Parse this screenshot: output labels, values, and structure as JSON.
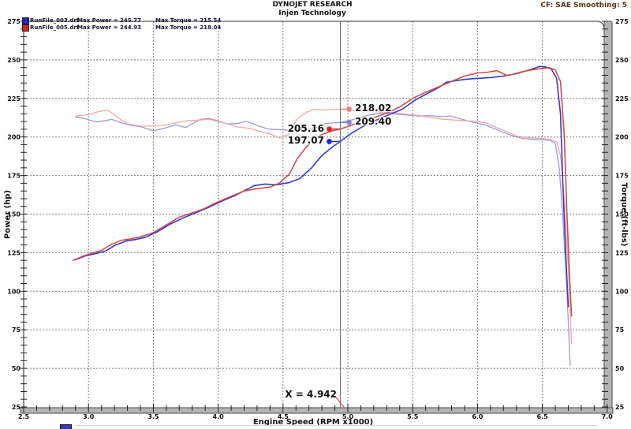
{
  "header": {
    "brand": "DYNOJET RESEARCH",
    "facility": "Injen Technology",
    "correction": "CF: SAE  Smoothing: 5"
  },
  "legend": {
    "rows": [
      {
        "swatch_color": "#2323c8",
        "file": "RunFile_003.drf",
        "max_power": "Max Power = 245.77",
        "max_torque": "Max Torque = 215.54"
      },
      {
        "swatch_color": "#d42323",
        "file": "RunFile_005.drf",
        "max_power": "Max Power = 244.93",
        "max_torque": "Max Torque = 218.04"
      }
    ]
  },
  "axes": {
    "left_title": "Power (hp)",
    "right_title": "Torque (ft-lbs)",
    "x_title": "Engine Speed (RPM x1000)"
  },
  "cursor": {
    "label": "X = 4.942",
    "rpm": 4.942
  },
  "callouts": [
    {
      "text": "218.02",
      "value": 218.02,
      "side": "right",
      "color": "#ef8282"
    },
    {
      "text": "209.40",
      "value": 209.4,
      "side": "right",
      "color": "#8787e2"
    },
    {
      "text": "205.16",
      "value": 205.16,
      "side": "left",
      "color": "#e02525"
    },
    {
      "text": "197.07",
      "value": 197.07,
      "side": "left",
      "color": "#2525d8"
    }
  ],
  "chart_data": {
    "type": "line",
    "title": "",
    "xlabel": "Engine Speed (RPM x1000)",
    "ylabel_left": "Power (hp)",
    "ylabel_right": "Torque (ft-lbs)",
    "xlim": [
      2.5,
      7.0
    ],
    "ylim": [
      25,
      275
    ],
    "x_major_ticks": [
      2.5,
      3.0,
      3.5,
      4.0,
      4.5,
      5.0,
      5.5,
      6.0,
      6.5,
      7.0
    ],
    "y_major_ticks": [
      25,
      50,
      75,
      100,
      125,
      150,
      175,
      200,
      225,
      250,
      275
    ],
    "x_minor_step": 0.1,
    "y_minor_step": 5,
    "grid": "dashed",
    "legend_position": "top-left",
    "series": [
      {
        "name": "RunFile_003 Torque (ft-lbs)",
        "color": "#9a9ada",
        "width": 1.3,
        "points": [
          [
            2.9,
            213
          ],
          [
            2.97,
            212
          ],
          [
            3.06,
            209.7
          ],
          [
            3.12,
            210.5
          ],
          [
            3.18,
            211.4
          ],
          [
            3.26,
            209
          ],
          [
            3.33,
            207.5
          ],
          [
            3.41,
            206.5
          ],
          [
            3.5,
            204
          ],
          [
            3.58,
            205.5
          ],
          [
            3.67,
            207.9
          ],
          [
            3.75,
            206.2
          ],
          [
            3.86,
            211.3
          ],
          [
            3.93,
            212
          ],
          [
            4.0,
            210.5
          ],
          [
            4.07,
            208.5
          ],
          [
            4.14,
            208.7
          ],
          [
            4.22,
            210.1
          ],
          [
            4.3,
            207.5
          ],
          [
            4.38,
            205.2
          ],
          [
            4.46,
            204.8
          ],
          [
            4.54,
            204.4
          ],
          [
            4.62,
            204.2
          ],
          [
            4.7,
            204.6
          ],
          [
            4.77,
            206.5
          ],
          [
            4.83,
            208.8
          ],
          [
            4.9,
            209.2
          ],
          [
            4.942,
            209.4
          ],
          [
            5.05,
            211.5
          ],
          [
            5.15,
            214
          ],
          [
            5.25,
            215.54
          ],
          [
            5.35,
            215
          ],
          [
            5.45,
            214.2
          ],
          [
            5.55,
            213.5
          ],
          [
            5.63,
            213.8
          ],
          [
            5.71,
            213.2
          ],
          [
            5.79,
            213.6
          ],
          [
            5.88,
            211.5
          ],
          [
            5.97,
            209.5
          ],
          [
            6.07,
            207.5
          ],
          [
            6.17,
            204
          ],
          [
            6.27,
            200.8
          ],
          [
            6.35,
            199
          ],
          [
            6.45,
            198.3
          ],
          [
            6.55,
            198
          ],
          [
            6.6,
            196
          ],
          [
            6.63,
            180
          ],
          [
            6.66,
            145
          ],
          [
            6.69,
            100
          ],
          [
            6.715,
            52
          ]
        ]
      },
      {
        "name": "RunFile_005 Torque (ft-lbs)",
        "color": "#eda8a8",
        "width": 1.3,
        "points": [
          [
            2.9,
            213.5
          ],
          [
            3.0,
            214.5
          ],
          [
            3.08,
            216.5
          ],
          [
            3.15,
            217.4
          ],
          [
            3.22,
            213
          ],
          [
            3.3,
            208.5
          ],
          [
            3.4,
            207
          ],
          [
            3.5,
            207
          ],
          [
            3.58,
            207.5
          ],
          [
            3.66,
            209
          ],
          [
            3.76,
            210.5
          ],
          [
            3.86,
            211
          ],
          [
            3.93,
            211.5
          ],
          [
            4.0,
            210
          ],
          [
            4.06,
            208.8
          ],
          [
            4.15,
            206.5
          ],
          [
            4.25,
            205.5
          ],
          [
            4.33,
            203.5
          ],
          [
            4.4,
            202
          ],
          [
            4.47,
            199.5
          ],
          [
            4.54,
            201.5
          ],
          [
            4.61,
            211.8
          ],
          [
            4.68,
            216
          ],
          [
            4.74,
            217.8
          ],
          [
            4.82,
            217.5
          ],
          [
            4.9,
            217.8
          ],
          [
            4.942,
            218.02
          ],
          [
            4.97,
            218.04
          ],
          [
            5.05,
            217.2
          ],
          [
            5.15,
            216.6
          ],
          [
            5.25,
            216.4
          ],
          [
            5.35,
            215.8
          ],
          [
            5.45,
            214.8
          ],
          [
            5.55,
            213.8
          ],
          [
            5.65,
            212.5
          ],
          [
            5.73,
            211.5
          ],
          [
            5.82,
            211
          ],
          [
            5.92,
            210.5
          ],
          [
            6.0,
            210
          ],
          [
            6.07,
            209
          ],
          [
            6.15,
            206
          ],
          [
            6.23,
            203.3
          ],
          [
            6.3,
            200.5
          ],
          [
            6.4,
            199.5
          ],
          [
            6.5,
            199
          ],
          [
            6.56,
            198.5
          ],
          [
            6.61,
            197
          ],
          [
            6.64,
            188
          ],
          [
            6.67,
            160
          ],
          [
            6.7,
            115
          ],
          [
            6.725,
            66
          ]
        ]
      },
      {
        "name": "RunFile_003 Power (hp)",
        "color": "#3a3ac2",
        "width": 1.6,
        "points": [
          [
            2.9,
            120.5
          ],
          [
            2.98,
            123
          ],
          [
            3.06,
            124.5
          ],
          [
            3.13,
            126
          ],
          [
            3.21,
            130
          ],
          [
            3.29,
            132.5
          ],
          [
            3.36,
            133.5
          ],
          [
            3.44,
            135
          ],
          [
            3.53,
            138.5
          ],
          [
            3.63,
            143.5
          ],
          [
            3.73,
            147.5
          ],
          [
            3.83,
            151
          ],
          [
            3.93,
            154.5
          ],
          [
            4.03,
            158.5
          ],
          [
            4.13,
            162
          ],
          [
            4.22,
            166
          ],
          [
            4.28,
            168.5
          ],
          [
            4.36,
            169.5
          ],
          [
            4.45,
            169
          ],
          [
            4.55,
            170.5
          ],
          [
            4.63,
            173
          ],
          [
            4.72,
            180
          ],
          [
            4.8,
            188
          ],
          [
            4.88,
            193.5
          ],
          [
            4.942,
            197.07
          ],
          [
            5.02,
            202
          ],
          [
            5.12,
            207
          ],
          [
            5.22,
            211
          ],
          [
            5.32,
            214.5
          ],
          [
            5.42,
            218
          ],
          [
            5.52,
            224
          ],
          [
            5.62,
            228.5
          ],
          [
            5.7,
            232
          ],
          [
            5.76,
            235.5
          ],
          [
            5.83,
            236.5
          ],
          [
            5.92,
            237.5
          ],
          [
            6.0,
            238
          ],
          [
            6.1,
            238.5
          ],
          [
            6.2,
            239.5
          ],
          [
            6.3,
            241
          ],
          [
            6.4,
            243.5
          ],
          [
            6.48,
            245.77
          ],
          [
            6.53,
            245.3
          ],
          [
            6.57,
            244
          ],
          [
            6.61,
            238
          ],
          [
            6.64,
            215
          ],
          [
            6.66,
            165
          ],
          [
            6.68,
            125
          ],
          [
            6.7,
            90
          ]
        ]
      },
      {
        "name": "RunFile_005 Power (hp)",
        "color": "#cf4d4d",
        "width": 1.6,
        "points": [
          [
            2.88,
            120
          ],
          [
            2.95,
            122.5
          ],
          [
            3.02,
            124.5
          ],
          [
            3.1,
            126.5
          ],
          [
            3.17,
            130
          ],
          [
            3.25,
            133
          ],
          [
            3.33,
            134
          ],
          [
            3.41,
            135.5
          ],
          [
            3.5,
            138
          ],
          [
            3.6,
            143
          ],
          [
            3.7,
            148
          ],
          [
            3.79,
            150.5
          ],
          [
            3.89,
            153.5
          ],
          [
            4.0,
            158
          ],
          [
            4.1,
            161.5
          ],
          [
            4.2,
            165
          ],
          [
            4.3,
            166.5
          ],
          [
            4.4,
            167.5
          ],
          [
            4.47,
            170
          ],
          [
            4.55,
            176
          ],
          [
            4.61,
            186
          ],
          [
            4.68,
            193.5
          ],
          [
            4.74,
            199
          ],
          [
            4.81,
            202
          ],
          [
            4.88,
            204
          ],
          [
            4.942,
            205.16
          ],
          [
            5.0,
            206.8
          ],
          [
            5.1,
            209.8
          ],
          [
            5.2,
            212.5
          ],
          [
            5.3,
            215.5
          ],
          [
            5.4,
            219.5
          ],
          [
            5.5,
            225
          ],
          [
            5.6,
            229
          ],
          [
            5.7,
            232.5
          ],
          [
            5.8,
            236
          ],
          [
            5.9,
            239.5
          ],
          [
            6.0,
            241.5
          ],
          [
            6.08,
            242
          ],
          [
            6.15,
            243
          ],
          [
            6.23,
            239.7
          ],
          [
            6.33,
            242
          ],
          [
            6.42,
            243.5
          ],
          [
            6.5,
            244.5
          ],
          [
            6.55,
            244.93
          ],
          [
            6.6,
            243.5
          ],
          [
            6.64,
            236
          ],
          [
            6.67,
            200
          ],
          [
            6.69,
            150
          ],
          [
            6.71,
            110
          ],
          [
            6.725,
            84
          ]
        ]
      }
    ]
  }
}
